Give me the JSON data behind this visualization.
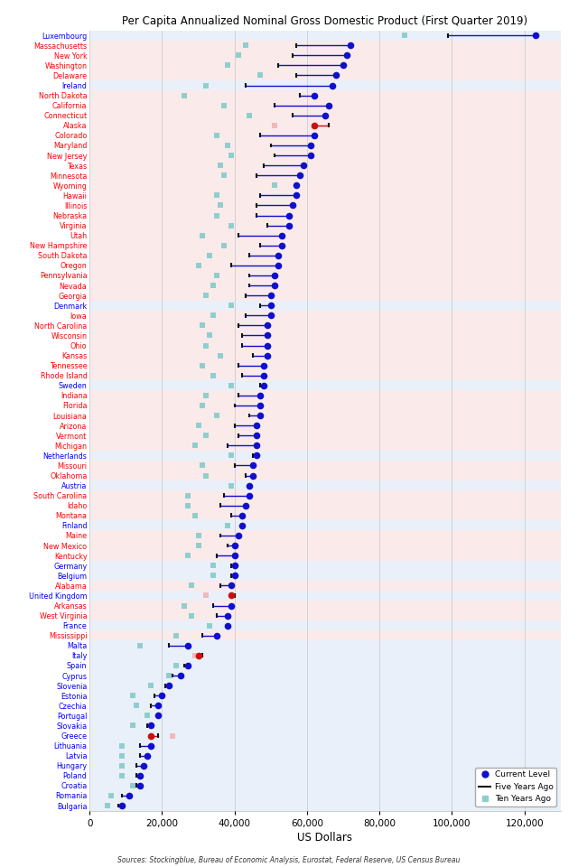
{
  "title": "Per Capita Annualized Nominal Gross Domestic Product (First Quarter 2019)",
  "xlabel": "US Dollars",
  "source": "Sources: Stockingblue, Bureau of Economic Analysis, Eurostat, Federal Reserve, US Census Bureau",
  "entries": [
    {
      "name": "Luxembourg",
      "color": "blue",
      "current": 123000,
      "five": 99000,
      "ten": 87000
    },
    {
      "name": "Massachusetts",
      "color": "red",
      "current": 72000,
      "five": 57000,
      "ten": 43000
    },
    {
      "name": "New York",
      "color": "red",
      "current": 71000,
      "five": 56000,
      "ten": 41000
    },
    {
      "name": "Washington",
      "color": "red",
      "current": 70000,
      "five": 52000,
      "ten": 38000
    },
    {
      "name": "Delaware",
      "color": "red",
      "current": 68000,
      "five": 57000,
      "ten": 47000
    },
    {
      "name": "Ireland",
      "color": "blue",
      "current": 67000,
      "five": 43000,
      "ten": 32000
    },
    {
      "name": "North Dakota",
      "color": "red",
      "current": 62000,
      "five": 58000,
      "ten": 26000
    },
    {
      "name": "California",
      "color": "red",
      "current": 66000,
      "five": 51000,
      "ten": 37000
    },
    {
      "name": "Connecticut",
      "color": "red",
      "current": 65000,
      "five": 56000,
      "ten": 44000
    },
    {
      "name": "Alaska",
      "color": "red",
      "current": 62000,
      "five": 66000,
      "ten": 51000
    },
    {
      "name": "Colorado",
      "color": "red",
      "current": 62000,
      "five": 47000,
      "ten": 35000
    },
    {
      "name": "Maryland",
      "color": "red",
      "current": 61000,
      "five": 50000,
      "ten": 38000
    },
    {
      "name": "New Jersey",
      "color": "red",
      "current": 61000,
      "five": 51000,
      "ten": 39000
    },
    {
      "name": "Texas",
      "color": "red",
      "current": 59000,
      "five": 48000,
      "ten": 36000
    },
    {
      "name": "Minnesota",
      "color": "red",
      "current": 58000,
      "five": 46000,
      "ten": 37000
    },
    {
      "name": "Wyoming",
      "color": "red",
      "current": 57000,
      "five": 57000,
      "ten": 51000
    },
    {
      "name": "Hawaii",
      "color": "red",
      "current": 57000,
      "five": 47000,
      "ten": 35000
    },
    {
      "name": "Illinois",
      "color": "red",
      "current": 56000,
      "five": 46000,
      "ten": 36000
    },
    {
      "name": "Nebraska",
      "color": "red",
      "current": 55000,
      "five": 46000,
      "ten": 35000
    },
    {
      "name": "Virginia",
      "color": "red",
      "current": 55000,
      "five": 49000,
      "ten": 39000
    },
    {
      "name": "Utah",
      "color": "red",
      "current": 53000,
      "five": 41000,
      "ten": 31000
    },
    {
      "name": "New Hampshire",
      "color": "red",
      "current": 53000,
      "five": 47000,
      "ten": 37000
    },
    {
      "name": "South Dakota",
      "color": "red",
      "current": 52000,
      "five": 44000,
      "ten": 33000
    },
    {
      "name": "Oregon",
      "color": "red",
      "current": 52000,
      "five": 39000,
      "ten": 30000
    },
    {
      "name": "Pennsylvania",
      "color": "red",
      "current": 51000,
      "five": 44000,
      "ten": 35000
    },
    {
      "name": "Nevada",
      "color": "red",
      "current": 51000,
      "five": 44000,
      "ten": 34000
    },
    {
      "name": "Georgia",
      "color": "red",
      "current": 50000,
      "five": 43000,
      "ten": 32000
    },
    {
      "name": "Denmark",
      "color": "blue",
      "current": 50000,
      "five": 47000,
      "ten": 39000
    },
    {
      "name": "Iowa",
      "color": "red",
      "current": 50000,
      "five": 43000,
      "ten": 34000
    },
    {
      "name": "North Carolina",
      "color": "red",
      "current": 49000,
      "five": 41000,
      "ten": 31000
    },
    {
      "name": "Wisconsin",
      "color": "red",
      "current": 49000,
      "five": 42000,
      "ten": 33000
    },
    {
      "name": "Ohio",
      "color": "red",
      "current": 49000,
      "five": 42000,
      "ten": 32000
    },
    {
      "name": "Kansas",
      "color": "red",
      "current": 49000,
      "five": 45000,
      "ten": 36000
    },
    {
      "name": "Tennessee",
      "color": "red",
      "current": 48000,
      "five": 41000,
      "ten": 31000
    },
    {
      "name": "Rhode Island",
      "color": "red",
      "current": 48000,
      "five": 42000,
      "ten": 34000
    },
    {
      "name": "Sweden",
      "color": "blue",
      "current": 48000,
      "five": 47000,
      "ten": 39000
    },
    {
      "name": "Indiana",
      "color": "red",
      "current": 47000,
      "five": 41000,
      "ten": 32000
    },
    {
      "name": "Florida",
      "color": "red",
      "current": 47000,
      "five": 40000,
      "ten": 31000
    },
    {
      "name": "Louisiana",
      "color": "red",
      "current": 47000,
      "five": 44000,
      "ten": 35000
    },
    {
      "name": "Arizona",
      "color": "red",
      "current": 46000,
      "five": 40000,
      "ten": 30000
    },
    {
      "name": "Vermont",
      "color": "red",
      "current": 46000,
      "five": 41000,
      "ten": 32000
    },
    {
      "name": "Michigan",
      "color": "red",
      "current": 46000,
      "five": 38000,
      "ten": 29000
    },
    {
      "name": "Netherlands",
      "color": "blue",
      "current": 46000,
      "five": 45000,
      "ten": 39000
    },
    {
      "name": "Missouri",
      "color": "red",
      "current": 45000,
      "five": 40000,
      "ten": 31000
    },
    {
      "name": "Oklahoma",
      "color": "red",
      "current": 45000,
      "five": 43000,
      "ten": 32000
    },
    {
      "name": "Austria",
      "color": "blue",
      "current": 44000,
      "five": 44000,
      "ten": 39000
    },
    {
      "name": "South Carolina",
      "color": "red",
      "current": 44000,
      "five": 37000,
      "ten": 27000
    },
    {
      "name": "Idaho",
      "color": "red",
      "current": 43000,
      "five": 36000,
      "ten": 27000
    },
    {
      "name": "Montana",
      "color": "red",
      "current": 42000,
      "five": 39000,
      "ten": 29000
    },
    {
      "name": "Finland",
      "color": "blue",
      "current": 42000,
      "five": 42000,
      "ten": 38000
    },
    {
      "name": "Maine",
      "color": "red",
      "current": 41000,
      "five": 36000,
      "ten": 30000
    },
    {
      "name": "New Mexico",
      "color": "red",
      "current": 40000,
      "five": 38000,
      "ten": 30000
    },
    {
      "name": "Kentucky",
      "color": "red",
      "current": 40000,
      "five": 35000,
      "ten": 27000
    },
    {
      "name": "Germany",
      "color": "blue",
      "current": 40000,
      "five": 39000,
      "ten": 34000
    },
    {
      "name": "Belgium",
      "color": "blue",
      "current": 40000,
      "five": 39000,
      "ten": 34000
    },
    {
      "name": "Alabama",
      "color": "red",
      "current": 39000,
      "five": 36000,
      "ten": 28000
    },
    {
      "name": "United Kingdom",
      "color": "blue",
      "current": 39000,
      "five": 40000,
      "ten": 32000
    },
    {
      "name": "Arkansas",
      "color": "red",
      "current": 39000,
      "five": 34000,
      "ten": 26000
    },
    {
      "name": "West Virginia",
      "color": "red",
      "current": 38000,
      "five": 35000,
      "ten": 28000
    },
    {
      "name": "France",
      "color": "blue",
      "current": 38000,
      "five": 38000,
      "ten": 33000
    },
    {
      "name": "Mississippi",
      "color": "red",
      "current": 35000,
      "five": 31000,
      "ten": 24000
    },
    {
      "name": "Malta",
      "color": "blue",
      "current": 27000,
      "five": 22000,
      "ten": 14000
    },
    {
      "name": "Italy",
      "color": "blue",
      "current": 30000,
      "five": 31000,
      "ten": 29000
    },
    {
      "name": "Spain",
      "color": "blue",
      "current": 27000,
      "five": 26000,
      "ten": 24000
    },
    {
      "name": "Cyprus",
      "color": "blue",
      "current": 25000,
      "five": 23000,
      "ten": 22000
    },
    {
      "name": "Slovenia",
      "color": "blue",
      "current": 22000,
      "five": 21000,
      "ten": 17000
    },
    {
      "name": "Estonia",
      "color": "blue",
      "current": 20000,
      "five": 18000,
      "ten": 12000
    },
    {
      "name": "Czechia",
      "color": "blue",
      "current": 19000,
      "five": 17000,
      "ten": 13000
    },
    {
      "name": "Portugal",
      "color": "blue",
      "current": 19000,
      "five": 19000,
      "ten": 16000
    },
    {
      "name": "Slovakia",
      "color": "blue",
      "current": 17000,
      "five": 16000,
      "ten": 12000
    },
    {
      "name": "Greece",
      "color": "blue",
      "current": 17000,
      "five": 19000,
      "ten": 23000
    },
    {
      "name": "Lithuania",
      "color": "blue",
      "current": 17000,
      "five": 14000,
      "ten": 9000
    },
    {
      "name": "Latvia",
      "color": "blue",
      "current": 16000,
      "five": 14000,
      "ten": 9000
    },
    {
      "name": "Hungary",
      "color": "blue",
      "current": 15000,
      "five": 13000,
      "ten": 9000
    },
    {
      "name": "Poland",
      "color": "blue",
      "current": 14000,
      "five": 13000,
      "ten": 9000
    },
    {
      "name": "Croatia",
      "color": "blue",
      "current": 14000,
      "five": 13000,
      "ten": 12000
    },
    {
      "name": "Romania",
      "color": "blue",
      "current": 11000,
      "five": 9000,
      "ten": 6000
    },
    {
      "name": "Bulgaria",
      "color": "blue",
      "current": 9000,
      "five": 8000,
      "ten": 5000
    }
  ],
  "bg_color_red": "#faeaea",
  "bg_color_blue": "#eaf0fa",
  "grid_color": "#d0d0d0",
  "dot_color_blue": "#1010cc",
  "dot_color_red": "#cc1010",
  "line_color_blue": "#1010cc",
  "line_color_red": "#cc1010",
  "tick_color": "#111111",
  "ten_color_teal": "#90cece",
  "ten_color_pink": "#f0b8b8",
  "xlim": [
    0,
    130000
  ],
  "xticks": [
    0,
    20000,
    40000,
    60000,
    80000,
    100000,
    120000
  ],
  "xticklabels": [
    "0",
    "20,000",
    "40,000",
    "60,000",
    "80,000",
    "100,000",
    "120,000"
  ]
}
